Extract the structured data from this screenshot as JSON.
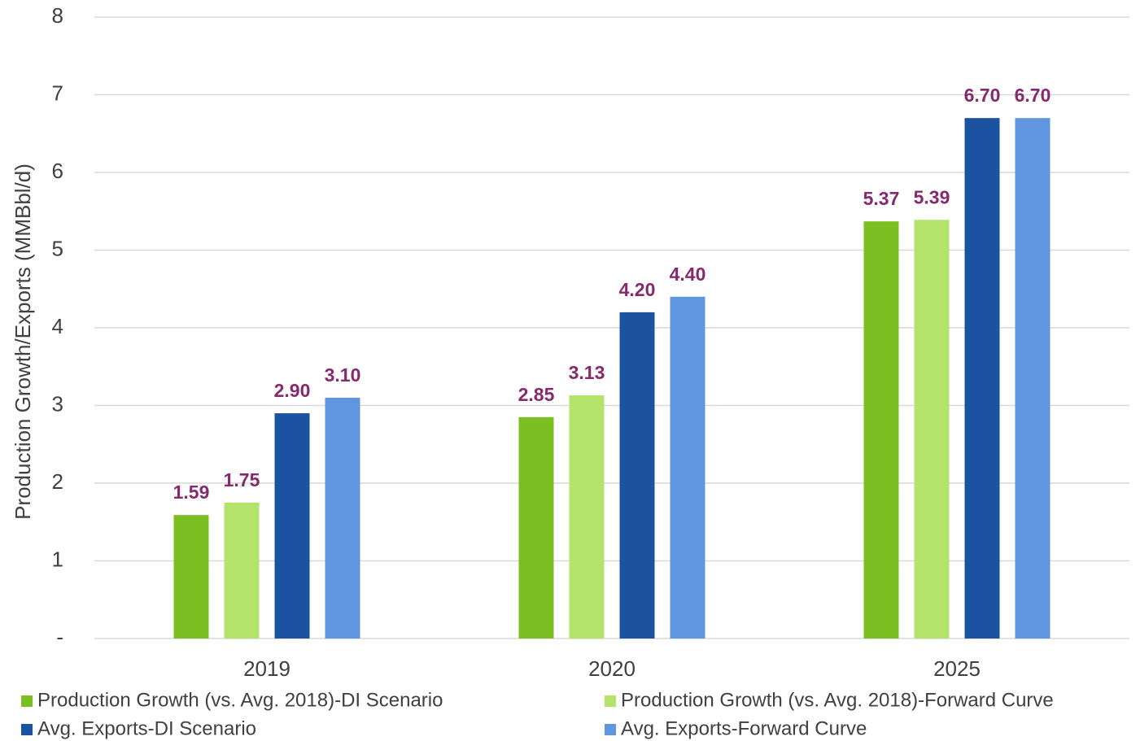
{
  "chart_data": {
    "type": "bar",
    "y_label": "Production Growth/Exports (MMBbl/d)",
    "categories": [
      "2019",
      "2020",
      "2025"
    ],
    "series": [
      {
        "name": "Production Growth (vs. Avg. 2018)-DI Scenario",
        "color": "#7bbf22",
        "values": [
          1.59,
          2.85,
          5.37
        ],
        "value_labels": [
          "1.59",
          "2.85",
          "5.37"
        ]
      },
      {
        "name": "Production Growth (vs. Avg. 2018)-Forward Curve",
        "color": "#b3e36b",
        "values": [
          1.75,
          3.13,
          5.39
        ],
        "value_labels": [
          "1.75",
          "3.13",
          "5.39"
        ]
      },
      {
        "name": "Avg. Exports-DI Scenario",
        "color": "#1c53a0",
        "values": [
          2.9,
          4.2,
          6.7
        ],
        "value_labels": [
          "2.90",
          "4.20",
          "6.70"
        ]
      },
      {
        "name": "Avg. Exports-Forward Curve",
        "color": "#6096e0",
        "values": [
          3.1,
          4.4,
          6.7
        ],
        "value_labels": [
          "3.10",
          "4.40",
          "6.70"
        ]
      }
    ],
    "ylim": [
      0,
      8
    ],
    "yticks": [
      {
        "value": 0,
        "label": "-"
      },
      1,
      2,
      3,
      4,
      5,
      6,
      7,
      8
    ],
    "grid": true
  }
}
